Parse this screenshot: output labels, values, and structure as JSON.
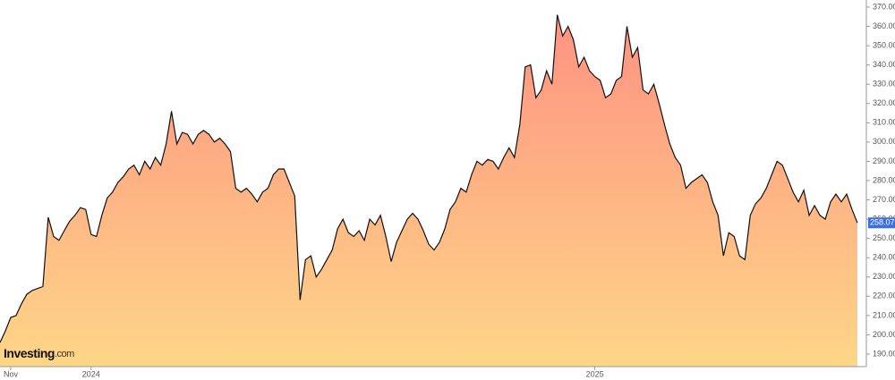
{
  "chart_data": {
    "type": "area",
    "values": [
      196,
      202,
      209,
      210,
      216,
      221,
      223,
      224,
      225,
      261,
      251,
      249,
      254,
      259,
      262,
      266,
      265,
      252,
      251,
      262,
      271,
      274,
      279,
      282,
      286,
      288,
      283,
      290,
      286,
      292,
      288,
      299,
      316,
      299,
      305,
      304,
      299,
      304,
      306,
      304,
      300,
      302,
      299,
      295,
      276,
      274,
      276,
      273,
      269,
      274,
      276,
      283,
      286,
      286,
      279,
      272,
      218,
      239,
      241,
      230,
      234,
      239,
      244,
      255,
      260,
      253,
      251,
      254,
      249,
      260,
      257,
      262,
      251,
      238,
      248,
      254,
      260,
      263,
      260,
      254,
      247,
      244,
      248,
      255,
      265,
      269,
      276,
      274,
      283,
      290,
      288,
      291,
      290,
      286,
      292,
      297,
      292,
      309,
      339,
      340,
      323,
      327,
      337,
      330,
      366,
      355,
      360,
      353,
      339,
      344,
      337,
      334,
      332,
      323,
      325,
      332,
      334,
      360,
      344,
      349,
      327,
      325,
      330,
      320,
      309,
      299,
      292,
      288,
      276,
      279,
      281,
      283,
      279,
      269,
      262,
      241,
      253,
      251,
      241,
      239,
      262,
      268,
      271,
      276,
      283,
      290,
      288,
      281,
      274,
      269,
      275,
      262,
      267,
      262,
      260,
      269,
      273,
      269,
      273,
      265,
      258.07
    ],
    "categories": [
      null,
      null,
      "Nov",
      null,
      null,
      null,
      null,
      null,
      null,
      null,
      null,
      null,
      null,
      null,
      null,
      null,
      null,
      "2024",
      null,
      null,
      null,
      null,
      null,
      null,
      null,
      null,
      null,
      null,
      null,
      null,
      null,
      null,
      null,
      null,
      null,
      null,
      null,
      null,
      null,
      null,
      null,
      null,
      null,
      null,
      null,
      null,
      null,
      null,
      null,
      null,
      null,
      null,
      null,
      null,
      null,
      null,
      null,
      null,
      null,
      null,
      null,
      null,
      null,
      null,
      null,
      null,
      null,
      null,
      null,
      null,
      null,
      null,
      null,
      null,
      null,
      null,
      null,
      null,
      null,
      null,
      null,
      null,
      null,
      null,
      null,
      null,
      null,
      null,
      null,
      null,
      null,
      null,
      null,
      null,
      null,
      null,
      null,
      null,
      null,
      null,
      null,
      null,
      null,
      null,
      null,
      null,
      null,
      null,
      null,
      null,
      null,
      "2025",
      null,
      null,
      null,
      null,
      null,
      null,
      null,
      null,
      null,
      null,
      null,
      null,
      null,
      null,
      null,
      null,
      null,
      null,
      null,
      null,
      null,
      null,
      null,
      null,
      null,
      null,
      null,
      null,
      null,
      null,
      null,
      null,
      null,
      null,
      null,
      null,
      null,
      null,
      null,
      null,
      null,
      null,
      null,
      null,
      null,
      null,
      null,
      null,
      null
    ],
    "ylim": [
      183.5,
      373.7
    ],
    "yticks": [
      {
        "value": 190,
        "label": "190.00"
      },
      {
        "value": 200,
        "label": "200.00"
      },
      {
        "value": 210,
        "label": "210.00"
      },
      {
        "value": 220,
        "label": "220.00"
      },
      {
        "value": 230,
        "label": "230.00"
      },
      {
        "value": 240,
        "label": "240.00"
      },
      {
        "value": 250,
        "label": "250.00"
      },
      {
        "value": 260,
        "label": "260.00"
      },
      {
        "value": 270,
        "label": "270.00"
      },
      {
        "value": 280,
        "label": "280.00"
      },
      {
        "value": 290,
        "label": "290.00"
      },
      {
        "value": 300,
        "label": "300.00"
      },
      {
        "value": 310,
        "label": "310.00"
      },
      {
        "value": 320,
        "label": "320.00"
      },
      {
        "value": 330,
        "label": "330.00"
      },
      {
        "value": 340,
        "label": "340.00"
      },
      {
        "value": 350,
        "label": "350.00"
      },
      {
        "value": 360,
        "label": "360.00"
      },
      {
        "value": 370,
        "label": "370.00"
      }
    ],
    "line_color": "#111111",
    "area_colors": [
      "#fe9282",
      "#fed687"
    ],
    "last_price_label": "258.07",
    "last_price_color": "#3d6ee0",
    "watermark": {
      "brand": "Investing",
      "suffix": ".com"
    }
  }
}
